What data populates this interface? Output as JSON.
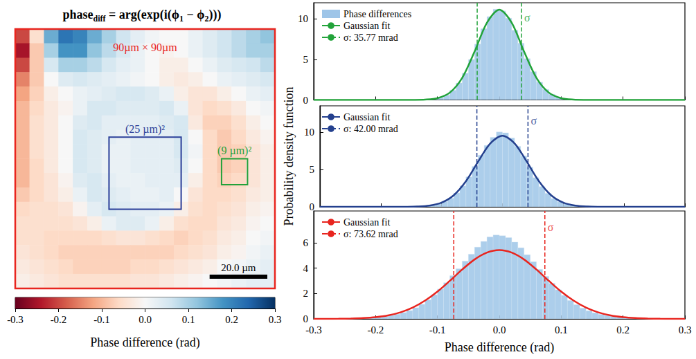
{
  "chart_data": [
    {
      "type": "heatmap",
      "title": [
        "phase",
        {
          "sub": "diff"
        },
        " = arg(exp(i(ϕ",
        {
          "sub": "1"
        },
        " − ϕ",
        {
          "sub": "2"
        },
        ")))"
      ],
      "xlim": [
        0,
        90
      ],
      "ylim": [
        0,
        90
      ],
      "cells": [
        [
          -0.2,
          -0.05,
          0.15,
          0.22,
          0.2,
          0.15,
          0.1,
          0.06,
          0.03,
          0.01,
          0,
          0,
          0.02,
          0.04,
          0.06,
          0.08,
          0.1,
          0.12
        ],
        [
          -0.25,
          -0.08,
          0.1,
          0.18,
          0.18,
          0.12,
          0.08,
          0.05,
          0.02,
          0,
          -0.01,
          0,
          0.02,
          0.04,
          0.06,
          0.08,
          0.1,
          0.1
        ],
        [
          -0.2,
          -0.08,
          0.05,
          0.1,
          0.1,
          0.08,
          0.05,
          0.03,
          0.02,
          0,
          -0.02,
          -0.02,
          0,
          0.02,
          0.04,
          0.05,
          0.06,
          0.08
        ],
        [
          -0.15,
          -0.08,
          0,
          0.04,
          0.05,
          0.04,
          0.03,
          0.02,
          0.01,
          0,
          -0.02,
          -0.03,
          -0.02,
          0,
          0.02,
          0.03,
          0.04,
          0.05
        ],
        [
          -0.12,
          -0.07,
          -0.02,
          0,
          0.02,
          0.03,
          0.04,
          0.05,
          0.05,
          0.04,
          0.02,
          -0.02,
          -0.04,
          -0.04,
          -0.02,
          0,
          0.02,
          0.03
        ],
        [
          -0.1,
          -0.06,
          -0.03,
          -0.01,
          0.02,
          0.05,
          0.05,
          0.04,
          0.04,
          0.04,
          0.05,
          0.02,
          -0.04,
          -0.06,
          -0.05,
          -0.03,
          0,
          0.01
        ],
        [
          -0.1,
          -0.05,
          -0.03,
          0,
          0.04,
          0.05,
          0.03,
          0.03,
          0.03,
          0.03,
          0.04,
          0.05,
          -0.03,
          -0.07,
          -0.07,
          -0.05,
          -0.02,
          0
        ],
        [
          -0.1,
          -0.05,
          -0.03,
          0,
          0.05,
          0.04,
          0.03,
          0.02,
          0.03,
          0.03,
          0.03,
          0.05,
          0,
          -0.06,
          -0.08,
          -0.06,
          -0.03,
          -0.01
        ],
        [
          -0.1,
          -0.05,
          -0.03,
          0,
          0.05,
          0.04,
          0.02,
          0.02,
          0.03,
          0.03,
          0.03,
          0.05,
          0.01,
          -0.06,
          -0.08,
          -0.07,
          -0.04,
          -0.02
        ],
        [
          -0.1,
          -0.06,
          -0.03,
          0,
          0.05,
          0.04,
          0.02,
          0.02,
          0.03,
          0.03,
          0.03,
          0.04,
          0,
          -0.06,
          -0.08,
          -0.07,
          -0.04,
          -0.02
        ],
        [
          -0.1,
          -0.06,
          -0.04,
          -0.01,
          0.04,
          0.05,
          0.03,
          0.02,
          0.02,
          0.03,
          0.03,
          0.03,
          -0.02,
          -0.06,
          -0.07,
          -0.06,
          -0.04,
          -0.02
        ],
        [
          -0.08,
          -0.06,
          -0.04,
          -0.02,
          0.02,
          0.05,
          0.04,
          0.03,
          0.02,
          0.02,
          0.03,
          0,
          -0.04,
          -0.06,
          -0.06,
          -0.05,
          -0.03,
          -0.02
        ],
        [
          -0.06,
          -0.05,
          -0.05,
          -0.04,
          -0.01,
          0.03,
          0.05,
          0.04,
          0.03,
          0.03,
          0.02,
          -0.02,
          -0.05,
          -0.06,
          -0.05,
          -0.04,
          -0.02,
          -0.01
        ],
        [
          -0.05,
          -0.05,
          -0.05,
          -0.05,
          -0.04,
          -0.02,
          0.02,
          0.04,
          0.04,
          0.02,
          -0.02,
          -0.05,
          -0.06,
          -0.06,
          -0.04,
          -0.03,
          -0.01,
          0
        ],
        [
          -0.05,
          -0.05,
          -0.06,
          -0.06,
          -0.06,
          -0.06,
          -0.05,
          -0.04,
          -0.04,
          -0.05,
          -0.06,
          -0.07,
          -0.06,
          -0.05,
          -0.03,
          -0.02,
          0,
          0.01
        ],
        [
          -0.04,
          -0.05,
          -0.06,
          -0.07,
          -0.07,
          -0.07,
          -0.07,
          -0.07,
          -0.07,
          -0.07,
          -0.07,
          -0.06,
          -0.05,
          -0.04,
          -0.02,
          -0.01,
          0.01,
          0.02
        ],
        [
          -0.03,
          -0.04,
          -0.05,
          -0.06,
          -0.07,
          -0.07,
          -0.07,
          -0.07,
          -0.06,
          -0.06,
          -0.05,
          -0.04,
          -0.03,
          -0.02,
          0,
          0.01,
          0.02,
          0.03
        ],
        [
          -0.02,
          -0.03,
          -0.04,
          -0.05,
          -0.05,
          -0.05,
          -0.05,
          -0.05,
          -0.04,
          -0.04,
          -0.03,
          -0.02,
          -0.01,
          0,
          0.01,
          0.02,
          0.03,
          0.03
        ]
      ],
      "color": "RdBu",
      "clim": [
        -0.3,
        0.3
      ],
      "cticks": [
        -0.3,
        -0.2,
        -0.1,
        {
          "value": 0,
          "label": "0.0"
        },
        0.1,
        0.2,
        0.3
      ],
      "clabel": "Phase difference (rad)",
      "regions": [
        {
          "label": "90µm × 90µm",
          "color": "#e8251f",
          "x": [
            0,
            90
          ],
          "y": [
            0,
            90
          ]
        },
        {
          "label": "(25 µm)²",
          "color": "#2b3f99",
          "x": [
            32.5,
            57.5
          ],
          "y": [
            37.5,
            62.5
          ]
        },
        {
          "label": "(9 µm)²",
          "color": "#23a13a",
          "x": [
            71.5,
            80.5
          ],
          "y": [
            45,
            54
          ]
        }
      ],
      "scale_bar": {
        "label": "20.0 µm",
        "length": 20
      }
    },
    {
      "type": "histogram",
      "name": "Phase differences",
      "color": "#9ec5e8",
      "bins": [
        -0.2,
        -0.19,
        -0.18,
        -0.17,
        -0.16,
        -0.15,
        -0.14,
        -0.13,
        -0.12,
        -0.11,
        -0.1,
        -0.09,
        -0.08,
        -0.07,
        -0.06,
        -0.05,
        -0.04,
        -0.03,
        -0.02,
        -0.01,
        0,
        0.01,
        0.02,
        0.03,
        0.04,
        0.05,
        0.06,
        0.07,
        0.08,
        0.09,
        0.1,
        0.11,
        0.12,
        0.13,
        0.14,
        0.15,
        0.16,
        0.17,
        0.18,
        0.19,
        0.2
      ],
      "values": [
        0,
        0,
        0,
        0.01,
        0.01,
        0.01,
        0.02,
        0.03,
        0.06,
        0.14,
        0.3,
        0.6,
        1.2,
        2.1,
        3.3,
        5.0,
        6.9,
        8.8,
        10.3,
        11.2,
        11.0,
        10.1,
        8.6,
        7.0,
        5.1,
        3.5,
        2.2,
        1.3,
        0.7,
        0.35,
        0.15,
        0.07,
        0.03,
        0.02,
        0.01,
        0.01,
        0.01,
        0,
        0,
        0
      ],
      "fit": {
        "name": "Gaussian fit",
        "color": "#22a33a",
        "line_style": "solid",
        "x": [
          -0.3,
          -0.28,
          -0.26,
          -0.24,
          -0.22,
          -0.2,
          -0.18,
          -0.16,
          -0.14,
          -0.12,
          -0.1,
          -0.08,
          -0.06,
          -0.04,
          -0.02,
          0,
          0.02,
          0.04,
          0.06,
          0.08,
          0.1,
          0.12,
          0.14,
          0.16,
          0.18,
          0.2,
          0.22,
          0.24,
          0.26,
          0.28,
          0.3
        ],
        "values": [
          0,
          0,
          0,
          0,
          0,
          0,
          0,
          0,
          0.005,
          0.04,
          0.22,
          0.91,
          2.73,
          5.97,
          9.54,
          11.15,
          9.54,
          5.97,
          2.73,
          0.91,
          0.22,
          0.04,
          0.005,
          0,
          0,
          0,
          0,
          0,
          0,
          0,
          0
        ]
      },
      "sigma": {
        "label": "σ: 35.77 mrad",
        "annotation": "σ",
        "x": [
          -0.03577,
          0.03577
        ],
        "color": "#22a33a",
        "line_style": "dashed"
      },
      "xlim": [
        -0.3,
        0.3
      ],
      "ylim": [
        0,
        12
      ],
      "xticks": [
        -0.3,
        -0.2,
        -0.1,
        {
          "value": 0,
          "label": "0.0"
        },
        0.1,
        0.2,
        0.3
      ],
      "yticks": [
        0,
        5,
        10
      ],
      "legend": "upper left",
      "tick_labels": "y"
    },
    {
      "type": "histogram",
      "color": "#9ec5e8",
      "bins": [
        -0.2,
        -0.19,
        -0.18,
        -0.17,
        -0.16,
        -0.15,
        -0.14,
        -0.13,
        -0.12,
        -0.11,
        -0.1,
        -0.09,
        -0.08,
        -0.07,
        -0.06,
        -0.05,
        -0.04,
        -0.03,
        -0.02,
        -0.01,
        0,
        0.01,
        0.02,
        0.03,
        0.04,
        0.05,
        0.06,
        0.07,
        0.08,
        0.09,
        0.1,
        0.11,
        0.12,
        0.13,
        0.14,
        0.15,
        0.16,
        0.17,
        0.18,
        0.19,
        0.2
      ],
      "values": [
        0,
        0,
        0.01,
        0.01,
        0.02,
        0.03,
        0.05,
        0.1,
        0.2,
        0.38,
        0.7,
        1.15,
        1.85,
        2.8,
        4.0,
        5.4,
        6.9,
        8.2,
        9.3,
        10.0,
        9.9,
        9.2,
        8.1,
        6.8,
        5.3,
        3.9,
        2.7,
        1.8,
        1.1,
        0.68,
        0.38,
        0.2,
        0.1,
        0.05,
        0.03,
        0.02,
        0.01,
        0.01,
        0,
        0
      ],
      "fit": {
        "name": "Gaussian fit",
        "color": "#24408e",
        "line_style": "solid",
        "x": [
          -0.3,
          -0.28,
          -0.26,
          -0.24,
          -0.22,
          -0.2,
          -0.18,
          -0.16,
          -0.14,
          -0.12,
          -0.1,
          -0.08,
          -0.06,
          -0.04,
          -0.02,
          0,
          0.02,
          0.04,
          0.06,
          0.08,
          0.1,
          0.12,
          0.14,
          0.16,
          0.18,
          0.2,
          0.22,
          0.24,
          0.26,
          0.28,
          0.3
        ],
        "values": [
          0,
          0,
          0,
          0,
          0,
          0,
          0.001,
          0.007,
          0.037,
          0.16,
          0.56,
          1.55,
          3.42,
          6.04,
          8.48,
          9.5,
          8.48,
          6.04,
          3.42,
          1.55,
          0.56,
          0.16,
          0.037,
          0.007,
          0.001,
          0,
          0,
          0,
          0,
          0,
          0
        ]
      },
      "sigma": {
        "label": "σ: 42.00 mrad",
        "annotation": "σ",
        "x": [
          -0.042,
          0.042
        ],
        "color": "#24408e",
        "line_style": "dashed"
      },
      "xlim": [
        -0.3,
        0.3
      ],
      "ylim": [
        0,
        13.5
      ],
      "xticks": [
        -0.3,
        -0.2,
        -0.1,
        {
          "value": 0,
          "label": "0.0"
        },
        0.1,
        0.2,
        0.3
      ],
      "yticks": [
        0,
        5,
        10
      ],
      "ylabel": "Probability density function",
      "legend": "upper left",
      "tick_labels": "y"
    },
    {
      "type": "histogram",
      "color": "#9ec5e8",
      "bins": [
        -0.25,
        -0.24,
        -0.23,
        -0.22,
        -0.21,
        -0.2,
        -0.19,
        -0.18,
        -0.17,
        -0.16,
        -0.15,
        -0.14,
        -0.13,
        -0.12,
        -0.11,
        -0.1,
        -0.09,
        -0.08,
        -0.07,
        -0.06,
        -0.05,
        -0.04,
        -0.03,
        -0.02,
        -0.01,
        0,
        0.01,
        0.02,
        0.03,
        0.04,
        0.05,
        0.06,
        0.07,
        0.08,
        0.09,
        0.1,
        0.11,
        0.12,
        0.13,
        0.14,
        0.15,
        0.16,
        0.17,
        0.18,
        0.19,
        0.2,
        0.21,
        0.22,
        0.23,
        0.24,
        0.25
      ],
      "values": [
        0.03,
        0.04,
        0.06,
        0.08,
        0.11,
        0.15,
        0.2,
        0.28,
        0.37,
        0.5,
        0.66,
        0.88,
        1.15,
        1.5,
        1.9,
        2.35,
        2.85,
        3.4,
        3.95,
        4.55,
        5.1,
        5.65,
        6.1,
        6.45,
        6.6,
        6.55,
        6.4,
        6.05,
        5.6,
        5.05,
        4.5,
        3.9,
        3.35,
        2.8,
        2.3,
        1.85,
        1.45,
        1.12,
        0.85,
        0.64,
        0.48,
        0.36,
        0.27,
        0.2,
        0.14,
        0.1,
        0.07,
        0.05,
        0.04,
        0.03
      ],
      "fit": {
        "name": "Gaussian fit",
        "color": "#e8251f",
        "line_style": "solid",
        "x": [
          -0.3,
          -0.28,
          -0.26,
          -0.24,
          -0.22,
          -0.2,
          -0.18,
          -0.16,
          -0.14,
          -0.12,
          -0.1,
          -0.08,
          -0.06,
          -0.04,
          -0.02,
          0,
          0.02,
          0.04,
          0.06,
          0.08,
          0.1,
          0.12,
          0.14,
          0.16,
          0.18,
          0.2,
          0.22,
          0.24,
          0.26,
          0.28,
          0.3
        ],
        "values": [
          0.001,
          0.004,
          0.011,
          0.027,
          0.062,
          0.135,
          0.27,
          0.51,
          0.89,
          1.44,
          2.15,
          3.0,
          3.89,
          4.68,
          5.22,
          5.42,
          5.22,
          4.68,
          3.89,
          3.0,
          2.15,
          1.44,
          0.89,
          0.51,
          0.27,
          0.135,
          0.062,
          0.027,
          0.011,
          0.004,
          0.001
        ]
      },
      "sigma": {
        "label": "σ: 73.62 mrad",
        "annotation": "σ",
        "x": [
          -0.07362,
          0.07362
        ],
        "color": "#e8251f",
        "line_style": "dashed"
      },
      "xlim": [
        -0.3,
        0.3
      ],
      "ylim": [
        0,
        8.5
      ],
      "xticks": [
        -0.3,
        -0.2,
        -0.1,
        {
          "value": 0,
          "label": "0.0"
        },
        0.1,
        0.2,
        0.3
      ],
      "yticks": [
        0,
        2,
        4,
        6
      ],
      "xlabel": "Phase difference (rad)",
      "legend": "upper left"
    }
  ]
}
